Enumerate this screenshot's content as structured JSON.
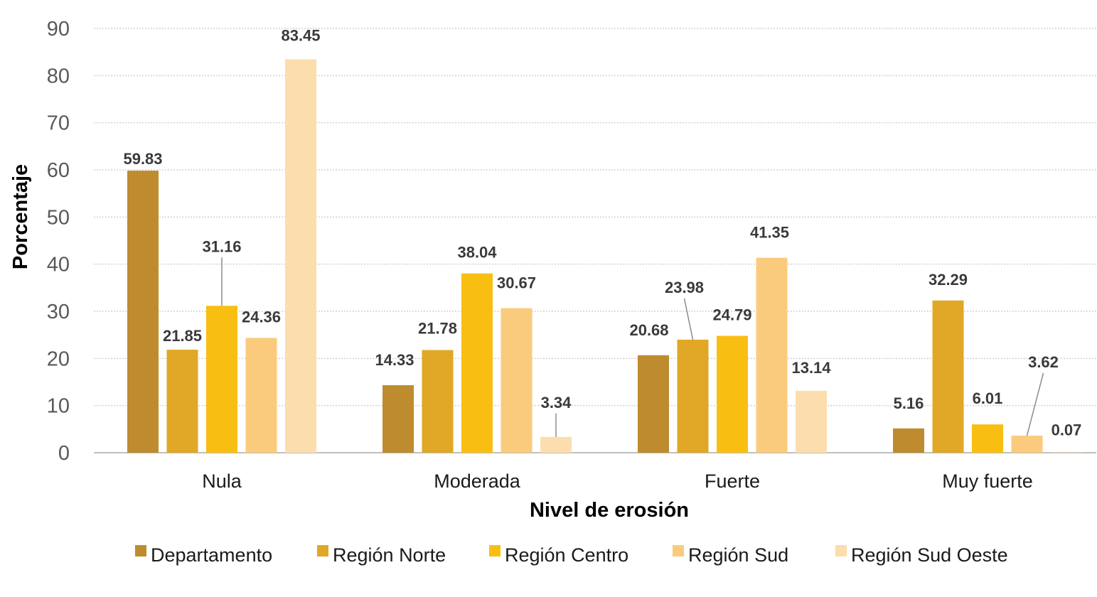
{
  "chart_data": {
    "type": "bar",
    "title": "",
    "xlabel": "Nivel de erosión",
    "ylabel": "Porcentaje",
    "ylim": [
      0,
      90
    ],
    "yticks": [
      0,
      10,
      20,
      30,
      40,
      50,
      60,
      70,
      80,
      90
    ],
    "ytick_labels": [
      "0",
      "10",
      "20",
      "30",
      "40",
      "50",
      "60",
      "70",
      "80",
      "90"
    ],
    "grid": true,
    "legend_position": "bottom",
    "categories": [
      "Nula",
      "Moderada",
      "Fuerte",
      "Muy fuerte"
    ],
    "series": [
      {
        "name": "Departamento",
        "color": "#BE8C2E",
        "values": [
          59.83,
          14.33,
          20.68,
          5.16
        ],
        "labels": [
          "59.83",
          "14.33",
          "20.68",
          "5.16"
        ]
      },
      {
        "name": "Región Norte",
        "color": "#E0A826",
        "values": [
          21.85,
          21.78,
          23.98,
          32.29
        ],
        "labels": [
          "21.85",
          "21.78",
          "23.98",
          "32.29"
        ]
      },
      {
        "name": "Región Centro",
        "color": "#F9BE12",
        "values": [
          31.16,
          38.04,
          24.79,
          6.01
        ],
        "labels": [
          "31.16",
          "38.04",
          "24.79",
          "6.01"
        ]
      },
      {
        "name": "Región Sud",
        "color": "#FBCB7D",
        "values": [
          24.36,
          30.67,
          41.35,
          3.62
        ],
        "labels": [
          "24.36",
          "30.67",
          "41.35",
          "3.62"
        ]
      },
      {
        "name": "Región Sud Oeste",
        "color": "#FCDDAE",
        "values": [
          83.45,
          3.34,
          13.14,
          0.07
        ],
        "labels": [
          "83.45",
          "3.34",
          "13.14",
          "0.07"
        ]
      }
    ]
  }
}
